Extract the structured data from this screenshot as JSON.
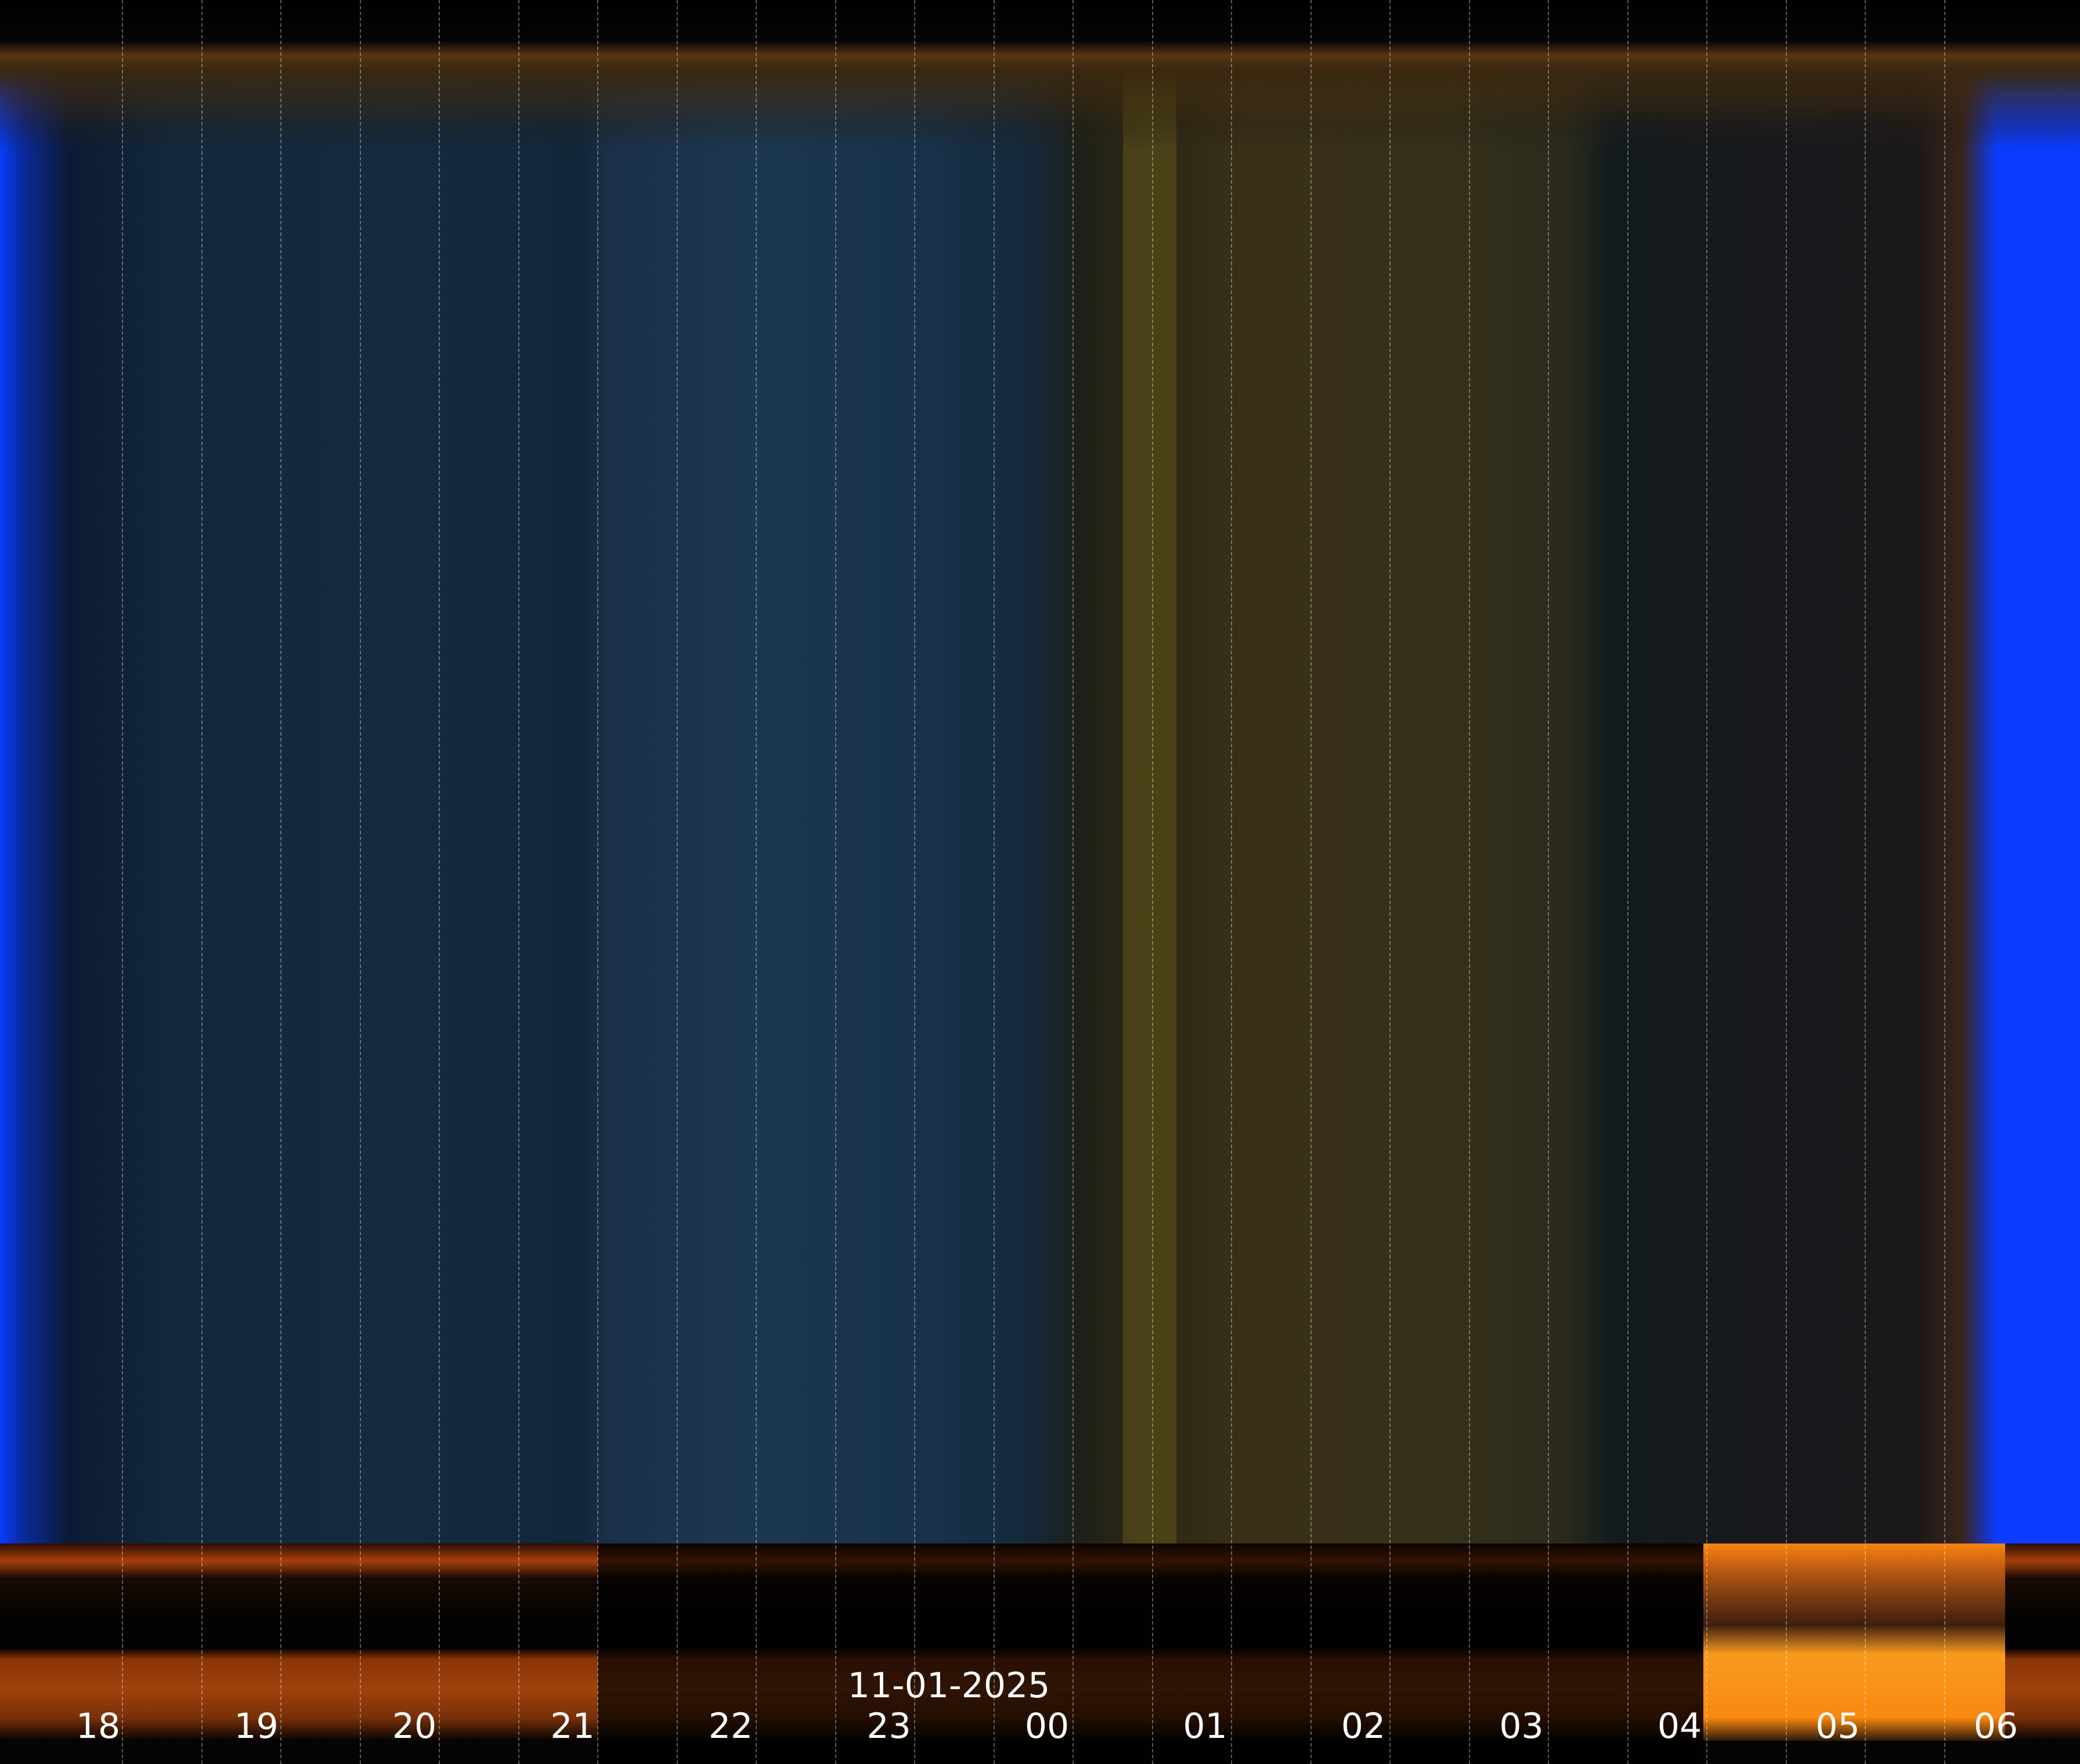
{
  "date": "11-01-2025",
  "hour_labels": [
    "18",
    "19",
    "20",
    "21",
    "22",
    "23",
    "00",
    "01",
    "02",
    "03",
    "04",
    "05",
    "06"
  ],
  "colors": {
    "edge": "#0a3cff",
    "twilight": "#ff8a10",
    "night_blue": "#142a40",
    "night_olive": "#3a3018"
  }
}
